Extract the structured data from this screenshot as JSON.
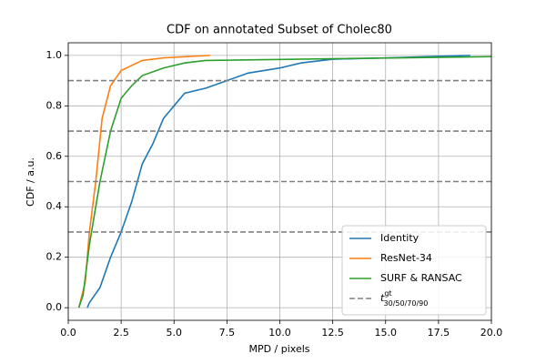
{
  "chart_data": {
    "type": "line",
    "title": "CDF on annotated Subset of Cholec80",
    "xlabel": "MPD / pixels",
    "ylabel": "CDF / a.u.",
    "xlim": [
      0,
      20
    ],
    "ylim": [
      -0.05,
      1.05
    ],
    "xticks": [
      {
        "value": 0,
        "label": "0.0"
      },
      {
        "value": 2.5,
        "label": "2.5"
      },
      {
        "value": 5,
        "label": "5.0"
      },
      {
        "value": 7.5,
        "label": "7.5"
      },
      {
        "value": 10,
        "label": "10.0"
      },
      {
        "value": 12.5,
        "label": "12.5"
      },
      {
        "value": 15,
        "label": "15.0"
      },
      {
        "value": 17.5,
        "label": "17.5"
      },
      {
        "value": 20,
        "label": "20.0"
      }
    ],
    "yticks": [
      {
        "value": 0,
        "label": "0.0"
      },
      {
        "value": 0.2,
        "label": "0.2"
      },
      {
        "value": 0.4,
        "label": "0.4"
      },
      {
        "value": 0.6,
        "label": "0.6"
      },
      {
        "value": 0.8,
        "label": "0.8"
      },
      {
        "value": 1,
        "label": "1.0"
      }
    ],
    "grid": true,
    "legend": "lower right",
    "series": [
      {
        "name": "Identity",
        "color": "#1f77b4",
        "x": [
          0.9,
          1.0,
          1.5,
          2.0,
          2.5,
          3.0,
          3.5,
          4.0,
          4.5,
          5.0,
          5.5,
          6.5,
          7.5,
          8.5,
          10,
          11,
          12.5,
          15,
          19
        ],
        "values": [
          0,
          0.02,
          0.08,
          0.2,
          0.3,
          0.42,
          0.57,
          0.65,
          0.75,
          0.8,
          0.85,
          0.87,
          0.9,
          0.93,
          0.95,
          0.97,
          0.985,
          0.99,
          1.0
        ]
      },
      {
        "name": "ResNet-34",
        "color": "#ff7f0e",
        "x": [
          0.5,
          0.8,
          1.0,
          1.3,
          1.6,
          2.0,
          2.5,
          3.0,
          3.5,
          4.5,
          6.7
        ],
        "values": [
          0,
          0.1,
          0.3,
          0.5,
          0.75,
          0.88,
          0.94,
          0.96,
          0.98,
          0.99,
          1.0
        ]
      },
      {
        "name": "SURF & RANSAC",
        "color": "#2ca02c",
        "x": [
          0.5,
          0.7,
          1.0,
          1.5,
          2.0,
          2.5,
          3.0,
          3.5,
          4.5,
          5.5,
          6.5,
          20
        ],
        "values": [
          0,
          0.05,
          0.25,
          0.5,
          0.7,
          0.83,
          0.88,
          0.92,
          0.95,
          0.97,
          0.98,
          0.995
        ]
      },
      {
        "type": "hline",
        "name": "t",
        "name_sub": "30/50/70/90",
        "name_sup": "gt",
        "color": "#808080",
        "dashed": true,
        "values": [
          0.3,
          0.5,
          0.7,
          0.9
        ]
      }
    ]
  }
}
